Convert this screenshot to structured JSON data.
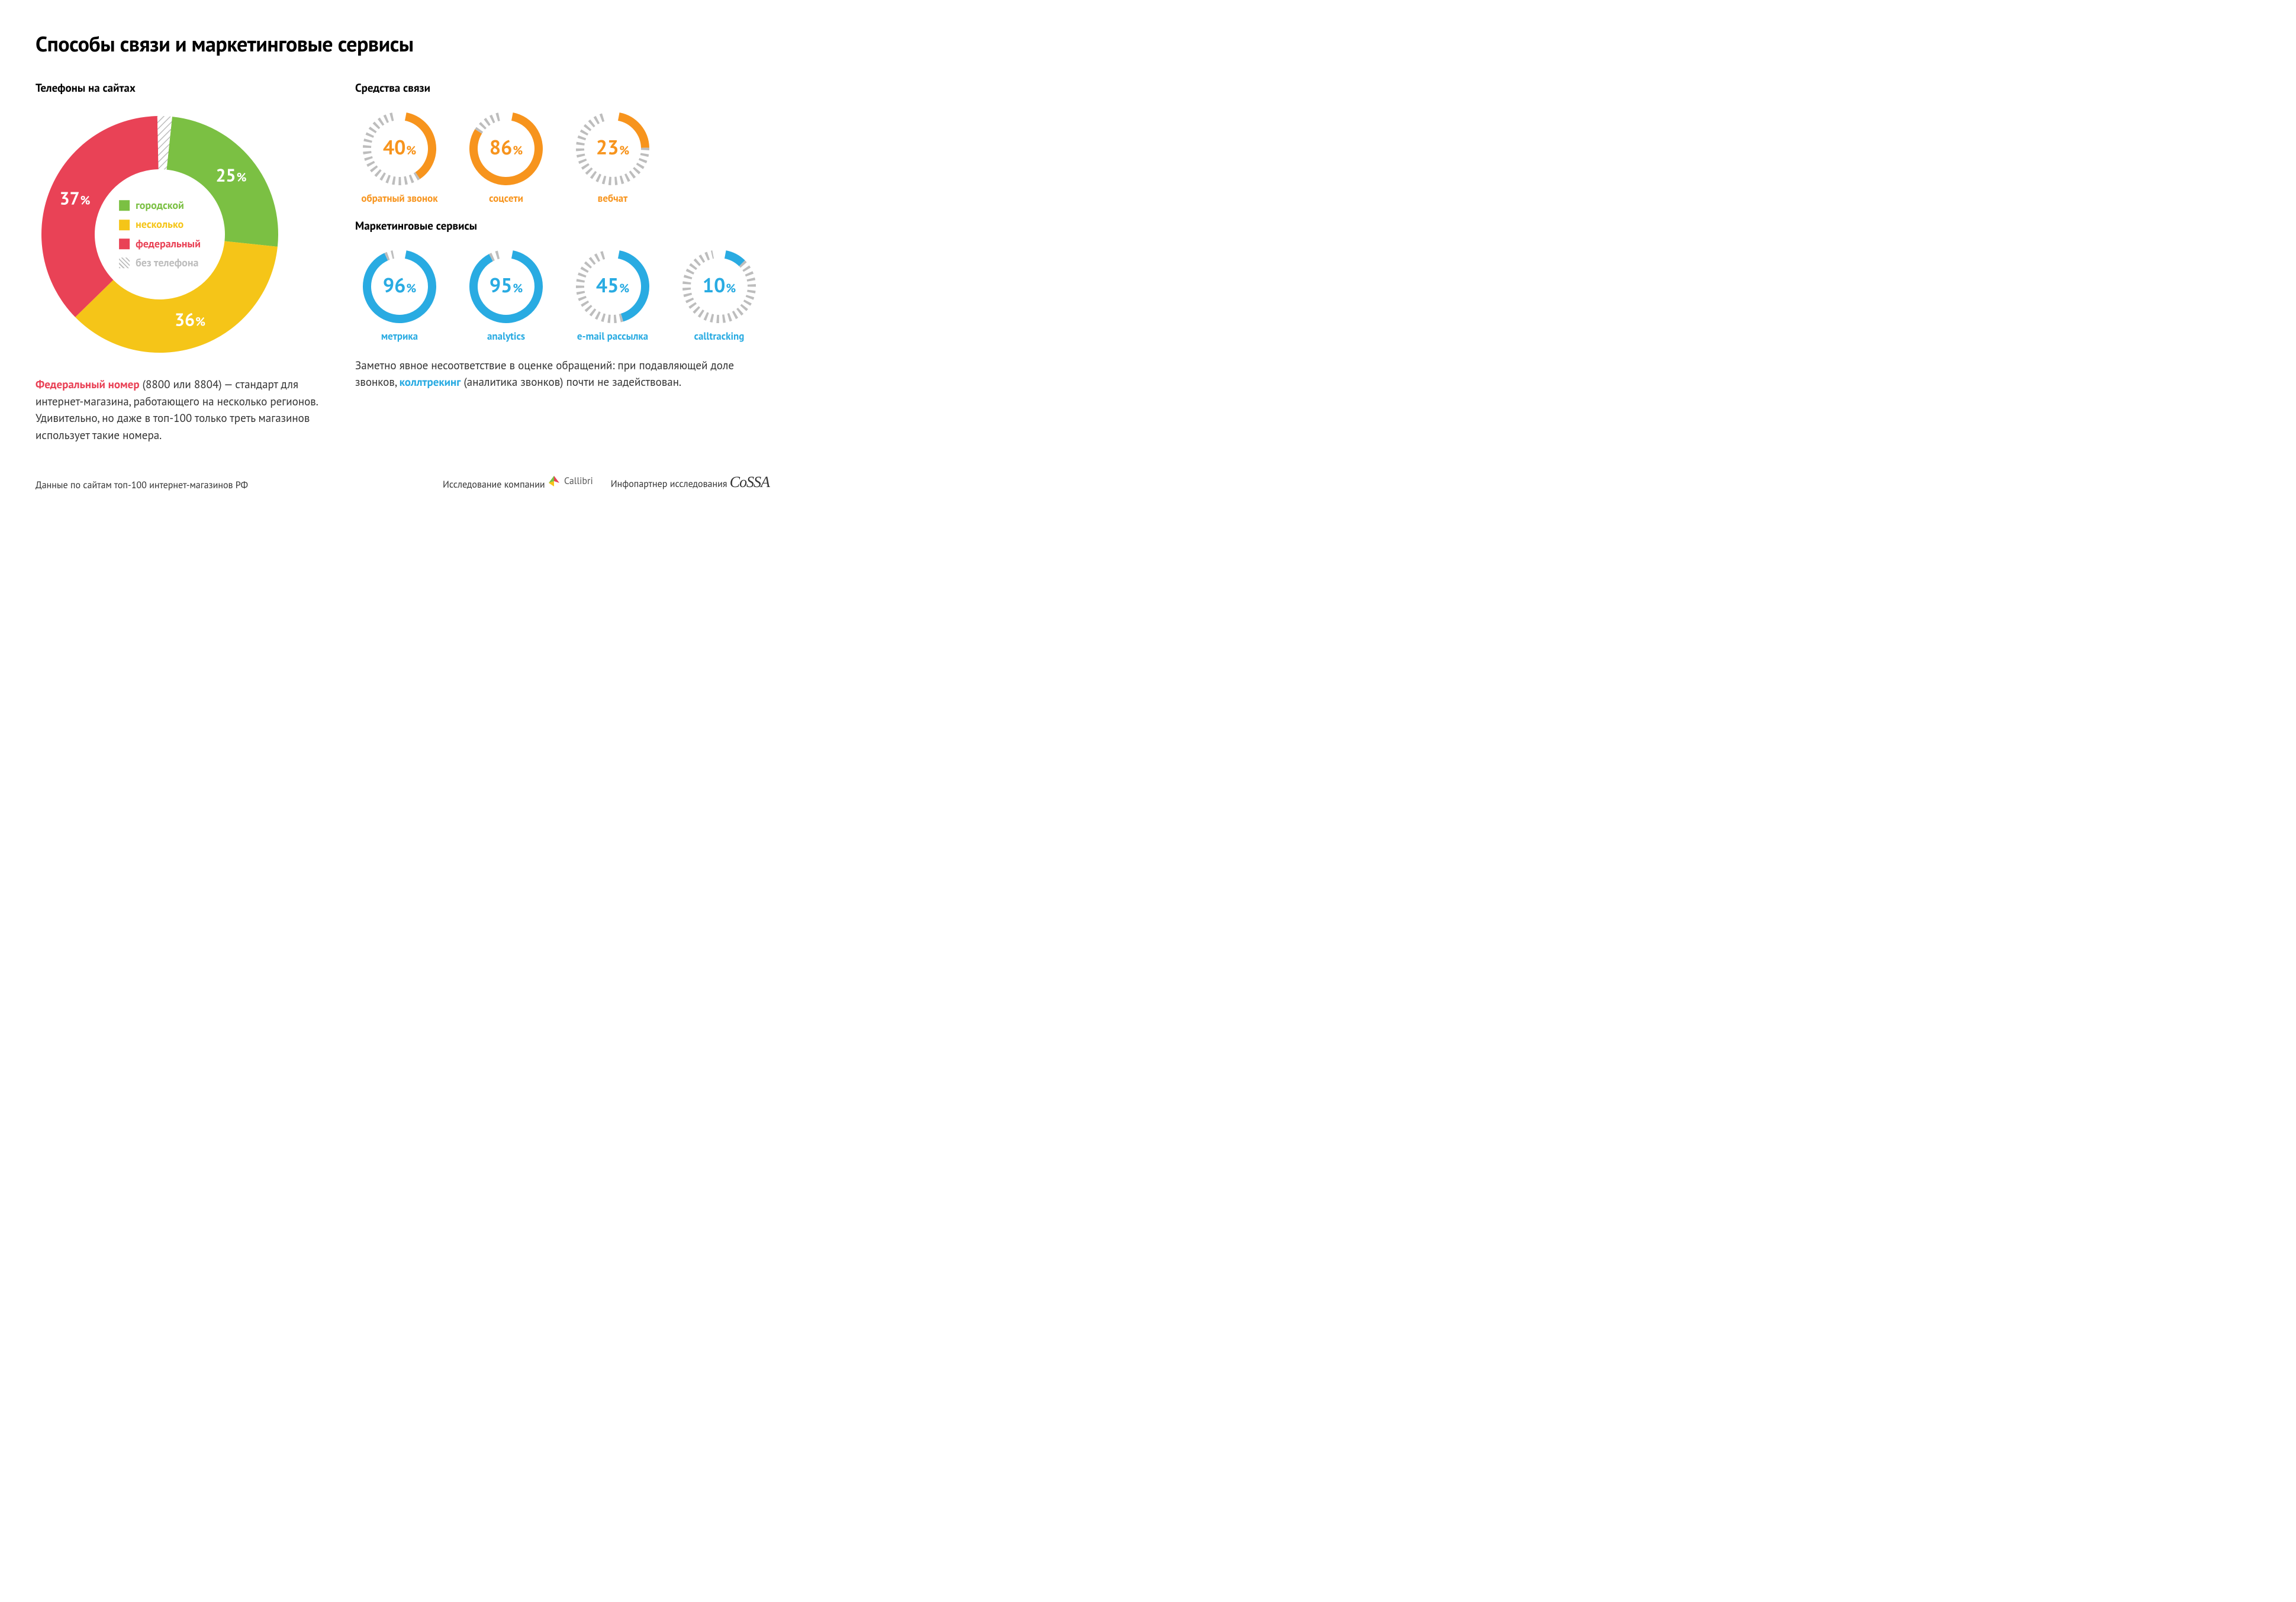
{
  "title": "Способы связи и маркетинговые сервисы",
  "donut": {
    "title": "Телефоны на сайтах",
    "inner_radius": 110,
    "outer_radius": 200,
    "start_angle_deg": 6,
    "slices": [
      {
        "key": "city",
        "label": "городской",
        "value": 25,
        "color": "#7bc043",
        "text_color": "#ffffff"
      },
      {
        "key": "several",
        "label": "несколько",
        "value": 36,
        "color": "#f5c518",
        "text_color": "#ffffff"
      },
      {
        "key": "federal",
        "label": "федеральный",
        "value": 37,
        "color": "#e94256",
        "text_color": "#ffffff"
      },
      {
        "key": "none",
        "label": "без телефона",
        "value": 2,
        "color": "hatch",
        "text_color": "#000000",
        "label_outside": true
      }
    ],
    "legend_text_colors": [
      "#7bc043",
      "#f5c518",
      "#e94256",
      "#bdbdbd"
    ],
    "label_fontsize": 30,
    "pct_fontsize": 20
  },
  "gauge_groups": [
    {
      "title": "Средства связи",
      "color": "#f7941d",
      "stroke_width": 14,
      "radius": 55,
      "gauges": [
        {
          "value": 40,
          "label": "обратный звонок"
        },
        {
          "value": 86,
          "label": "соцсети"
        },
        {
          "value": 23,
          "label": "вебчат"
        }
      ]
    },
    {
      "title": "Маркетинговые сервисы",
      "color": "#29abe2",
      "stroke_width": 14,
      "radius": 55,
      "gauges": [
        {
          "value": 96,
          "label": "метрика"
        },
        {
          "value": 95,
          "label": "analytics"
        },
        {
          "value": 45,
          "label": "e-mail рассылка"
        },
        {
          "value": 10,
          "label": "calltracking"
        }
      ]
    }
  ],
  "para_left": {
    "highlight": "Федеральный номер",
    "highlight_color": "#e94256",
    "text_after_hl": " (8800 или 8804) — стандарт для интернет-магазина, работающего на несколько регионов. Удивительно, но даже в топ-100 только треть магазинов использует такие номера."
  },
  "para_right": {
    "before": "Заметно явное несоответствие в оценке обращений: при подавляющей доле звонков, ",
    "highlight": "коллтрекинг",
    "highlight_color": "#29abe2",
    "after": " (аналитика звонков) почти не задействован."
  },
  "footer": {
    "source": "Данные по сайтам топ-100 интернет-магазинов РФ",
    "research_by": "Исследование компании",
    "research_brand": "Callibri",
    "partner_by": "Инфопартнер исследования",
    "partner_brand": "CoSSA"
  },
  "palette": {
    "hatch_stroke": "#bdbdbd",
    "background": "#ffffff",
    "text": "#000000",
    "body_text": "#333333"
  }
}
